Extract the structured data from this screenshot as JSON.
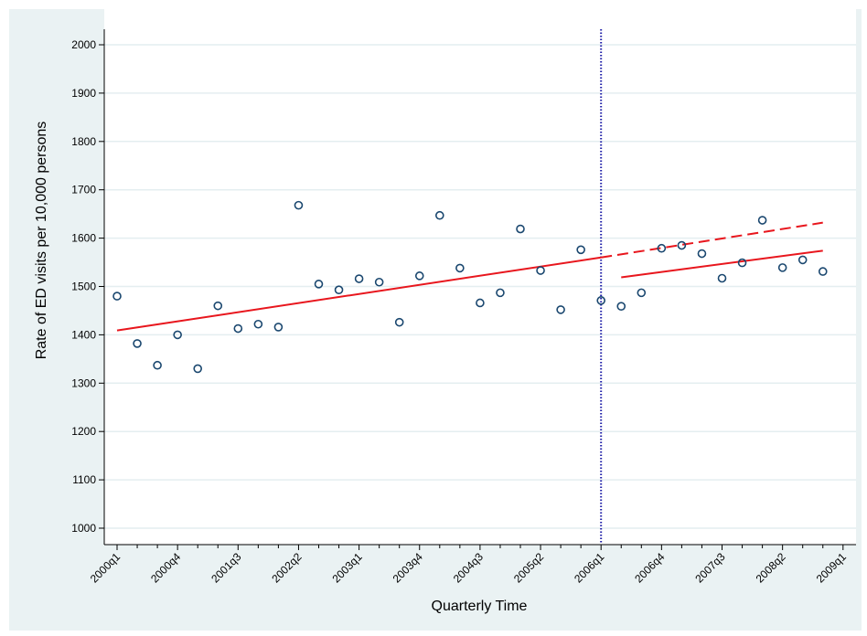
{
  "colors": {
    "background": "#eaf2f3",
    "plot_background": "#ffffff",
    "grid": "#e4eef0",
    "points": "#1a476f",
    "fit": "#e8161d",
    "intervention_line": "#1a1aa6"
  },
  "chart_data": {
    "type": "scatter",
    "xlabel": "Quarterly Time",
    "ylabel": "Rate of ED visits per 10,000 persons",
    "ylim": [
      1000,
      2000
    ],
    "yticks": [
      1000,
      1100,
      1200,
      1300,
      1400,
      1500,
      1600,
      1700,
      1800,
      1900,
      2000
    ],
    "x_periods": [
      "2000q1",
      "2000q2",
      "2000q3",
      "2000q4",
      "2001q1",
      "2001q2",
      "2001q3",
      "2001q4",
      "2002q1",
      "2002q2",
      "2002q3",
      "2002q4",
      "2003q1",
      "2003q2",
      "2003q3",
      "2003q4",
      "2004q1",
      "2004q2",
      "2004q3",
      "2004q4",
      "2005q1",
      "2005q2",
      "2005q3",
      "2005q4",
      "2006q1",
      "2006q2",
      "2006q3",
      "2006q4",
      "2007q1",
      "2007q2",
      "2007q3",
      "2007q4",
      "2008q1",
      "2008q2",
      "2008q3",
      "2008q4",
      "2009q1"
    ],
    "xtick_labels": [
      "2000q1",
      "2000q4",
      "2001q3",
      "2002q2",
      "2003q1",
      "2003q4",
      "2004q3",
      "2005q2",
      "2006q1",
      "2006q4",
      "2007q3",
      "2008q2",
      "2009q1"
    ],
    "grid": true,
    "legend": "none",
    "series": [
      {
        "type": "scatter",
        "values": [
          1480,
          1382,
          1337,
          1400,
          1330,
          1460,
          1413,
          1422,
          1416,
          1668,
          1505,
          1493,
          1516,
          1509,
          1426,
          1522,
          1647,
          1538,
          1466,
          1487,
          1619,
          1533,
          1452,
          1576,
          1471,
          1459,
          1487,
          1579,
          1585,
          1568,
          1517,
          1549,
          1637,
          1539,
          1555,
          1531
        ]
      },
      {
        "type": "line",
        "style": "solid",
        "x": [
          "2000q1",
          "2006q1"
        ],
        "y": [
          1409,
          1560
        ]
      },
      {
        "type": "line",
        "style": "dashed",
        "x": [
          "2006q1",
          "2008q4"
        ],
        "y": [
          1560,
          1632
        ]
      },
      {
        "type": "line",
        "style": "solid",
        "x": [
          "2006q2",
          "2008q4"
        ],
        "y": [
          1519,
          1574
        ]
      }
    ],
    "vertical_line": {
      "x": "2006q1",
      "style": "dotted"
    }
  }
}
